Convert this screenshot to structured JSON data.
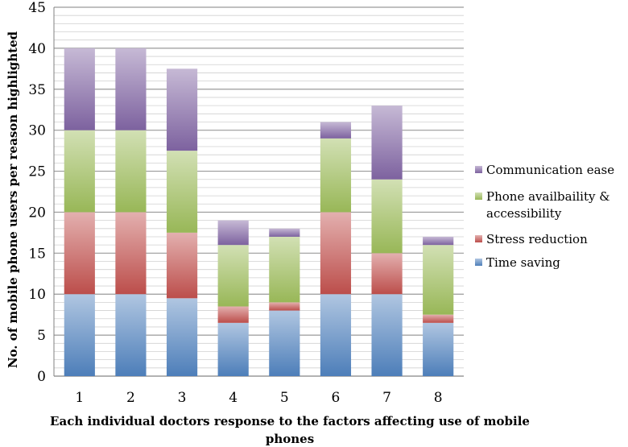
{
  "chart_data": {
    "type": "bar",
    "stacked": true,
    "title": "",
    "xlabel": "Each individual doctors response to the factors affecting use of mobile phones",
    "ylabel": "No. of mobile phone users per reason highlighted",
    "categories": [
      "1",
      "2",
      "3",
      "4",
      "5",
      "6",
      "7",
      "8"
    ],
    "ylim": [
      0,
      45
    ],
    "yticks": [
      0,
      5,
      10,
      15,
      20,
      25,
      30,
      35,
      40,
      45
    ],
    "grid": true,
    "legend_position": "right",
    "series": [
      {
        "name": "Time saving",
        "color": "#4f81bd",
        "values": [
          10,
          10,
          9.5,
          6.5,
          8,
          10,
          10,
          6.5
        ]
      },
      {
        "name": "Stress reduction",
        "color": "#c0504d",
        "values": [
          10,
          10,
          8,
          2,
          1,
          10,
          5,
          1
        ]
      },
      {
        "name": "Phone availbaility & accessibility",
        "color": "#9bbb59",
        "values": [
          10,
          10,
          10,
          7.5,
          8,
          9,
          9,
          8.5
        ]
      },
      {
        "name": "Communication ease",
        "color": "#8064a2",
        "values": [
          10,
          10,
          10,
          3,
          1,
          2,
          9,
          1
        ]
      }
    ],
    "legend_order": [
      "Communication ease",
      "Phone availbaility & accessibility",
      "Stress reduction",
      "Time saving"
    ]
  }
}
